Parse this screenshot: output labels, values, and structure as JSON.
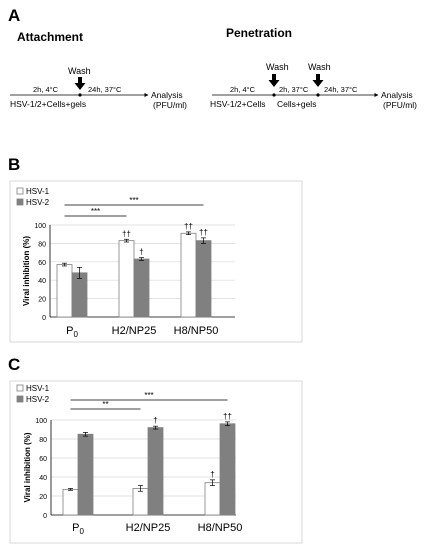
{
  "panel_a": {
    "label": "A",
    "attachment": {
      "title": "Attachment",
      "wash": "Wash",
      "step1": "2h, 4°C",
      "step2": "24h, 37°C",
      "start": "HSV-1/2+Cells+gels",
      "analysis_line1": "Analysis",
      "analysis_line2": "(PFU/ml)"
    },
    "penetration": {
      "title": "Penetration",
      "wash1": "Wash",
      "wash2": "Wash",
      "step1": "2h, 4°C",
      "step2": "2h, 37°C",
      "step3": "24h, 37°C",
      "start": "HSV-1/2+Cells",
      "mid": "Cells+gels",
      "analysis_line1": "Analysis",
      "analysis_line2": "(PFU/ml)"
    }
  },
  "chart_data": [
    {
      "panel": "B",
      "type": "bar",
      "ylabel": "Viral inhibition (%)",
      "ylim": [
        0,
        100
      ],
      "yticks": [
        "0",
        "20",
        "40",
        "60",
        "80",
        "100"
      ],
      "categories": [
        {
          "main": "P",
          "sub": "0"
        },
        {
          "main": "H2/NP25",
          "sub": ""
        },
        {
          "main": "H8/NP50",
          "sub": ""
        }
      ],
      "legend_position": "top-left",
      "series": [
        {
          "name": "HSV-1",
          "color": "#ffffff",
          "values": [
            57,
            83,
            91
          ],
          "errors": [
            1.5,
            1.5,
            1.5
          ],
          "markers": [
            "",
            "††",
            "††"
          ]
        },
        {
          "name": "HSV-2",
          "color": "#808080",
          "values": [
            48,
            63,
            83
          ],
          "errors": [
            6,
            1.5,
            3
          ],
          "markers": [
            "",
            "†",
            "††"
          ]
        }
      ],
      "significance": [
        {
          "label": "***",
          "from": 0,
          "to": 1,
          "level": 1
        },
        {
          "label": "***",
          "from": 0,
          "to": 2,
          "level": 2
        }
      ]
    },
    {
      "panel": "C",
      "type": "bar",
      "ylabel": "Viral inhibition (%)",
      "ylim": [
        0,
        100
      ],
      "yticks": [
        "0",
        "20",
        "40",
        "60",
        "80",
        "100"
      ],
      "categories": [
        {
          "main": "P",
          "sub": "0"
        },
        {
          "main": "H2/NP25",
          "sub": ""
        },
        {
          "main": "H8/NP50",
          "sub": ""
        }
      ],
      "legend_position": "top-left",
      "series": [
        {
          "name": "HSV-1",
          "color": "#ffffff",
          "values": [
            27,
            28,
            34
          ],
          "errors": [
            1,
            3,
            3
          ],
          "markers": [
            "",
            "",
            "†"
          ]
        },
        {
          "name": "HSV-2",
          "color": "#808080",
          "values": [
            85,
            92,
            96
          ],
          "errors": [
            2,
            1.5,
            2
          ],
          "markers": [
            "",
            "†",
            "††"
          ]
        }
      ],
      "significance": [
        {
          "label": "**",
          "from": 0,
          "to": 1,
          "level": 1
        },
        {
          "label": "***",
          "from": 0,
          "to": 2,
          "level": 2
        }
      ]
    }
  ]
}
